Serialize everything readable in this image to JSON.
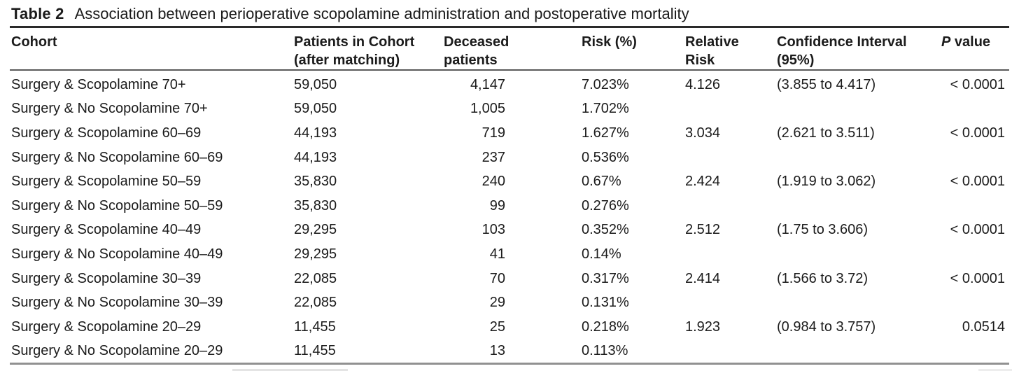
{
  "table": {
    "label": "Table 2",
    "caption": "Association between perioperative scopolamine administration and postoperative mortality",
    "columns": [
      {
        "key": "cohort",
        "line1": "Cohort",
        "line2": ""
      },
      {
        "key": "patients",
        "line1": "Patients in Cohort",
        "line2": "(after matching)"
      },
      {
        "key": "deceased",
        "line1": "Deceased",
        "line2": "patients"
      },
      {
        "key": "risk",
        "line1": "Risk (%)",
        "line2": ""
      },
      {
        "key": "relative_risk",
        "line1": "Relative",
        "line2": "Risk"
      },
      {
        "key": "confidence_interval",
        "line1": "Confidence Interval",
        "line2": "(95%)"
      },
      {
        "key": "p_value",
        "line1": "P value",
        "line2": ""
      }
    ],
    "p_header": {
      "italic": "P",
      "rest": " value"
    },
    "rows": [
      {
        "cohort": "Surgery & Scopolamine 70+",
        "patients": "59,050",
        "deceased": "4,147",
        "risk": "7.023%",
        "relative_risk": "4.126",
        "confidence_interval": "(3.855 to 4.417)",
        "p_value": "< 0.0001"
      },
      {
        "cohort": "Surgery & No Scopolamine 70+",
        "patients": "59,050",
        "deceased": "1,005",
        "risk": "1.702%",
        "relative_risk": "",
        "confidence_interval": "",
        "p_value": ""
      },
      {
        "cohort": "Surgery & Scopolamine 60–69",
        "patients": "44,193",
        "deceased": "719",
        "risk": "1.627%",
        "relative_risk": "3.034",
        "confidence_interval": "(2.621 to 3.511)",
        "p_value": "< 0.0001"
      },
      {
        "cohort": "Surgery & No Scopolamine 60–69",
        "patients": "44,193",
        "deceased": "237",
        "risk": "0.536%",
        "relative_risk": "",
        "confidence_interval": "",
        "p_value": ""
      },
      {
        "cohort": "Surgery & Scopolamine 50–59",
        "patients": "35,830",
        "deceased": "240",
        "risk": "0.67%",
        "relative_risk": "2.424",
        "confidence_interval": "(1.919 to 3.062)",
        "p_value": "< 0.0001"
      },
      {
        "cohort": "Surgery & No Scopolamine 50–59",
        "patients": "35,830",
        "deceased": "99",
        "risk": "0.276%",
        "relative_risk": "",
        "confidence_interval": "",
        "p_value": ""
      },
      {
        "cohort": "Surgery & Scopolamine 40–49",
        "patients": "29,295",
        "deceased": "103",
        "risk": "0.352%",
        "relative_risk": "2.512",
        "confidence_interval": "(1.75 to 3.606)",
        "p_value": "< 0.0001"
      },
      {
        "cohort": "Surgery & No Scopolamine 40–49",
        "patients": "29,295",
        "deceased": "41",
        "risk": "0.14%",
        "relative_risk": "",
        "confidence_interval": "",
        "p_value": ""
      },
      {
        "cohort": "Surgery & Scopolamine 30–39",
        "patients": "22,085",
        "deceased": "70",
        "risk": "0.317%",
        "relative_risk": "2.414",
        "confidence_interval": "(1.566 to 3.72)",
        "p_value": "< 0.0001"
      },
      {
        "cohort": "Surgery & No Scopolamine 30–39",
        "patients": "22,085",
        "deceased": "29",
        "risk": "0.131%",
        "relative_risk": "",
        "confidence_interval": "",
        "p_value": ""
      },
      {
        "cohort": "Surgery & Scopolamine 20–29",
        "patients": "11,455",
        "deceased": "25",
        "risk": "0.218%",
        "relative_risk": "1.923",
        "confidence_interval": "(0.984 to 3.757)",
        "p_value": "0.0514"
      },
      {
        "cohort": "Surgery & No Scopolamine 20–29",
        "patients": "11,455",
        "deceased": "13",
        "risk": "0.113%",
        "relative_risk": "",
        "confidence_interval": "",
        "p_value": ""
      }
    ]
  }
}
